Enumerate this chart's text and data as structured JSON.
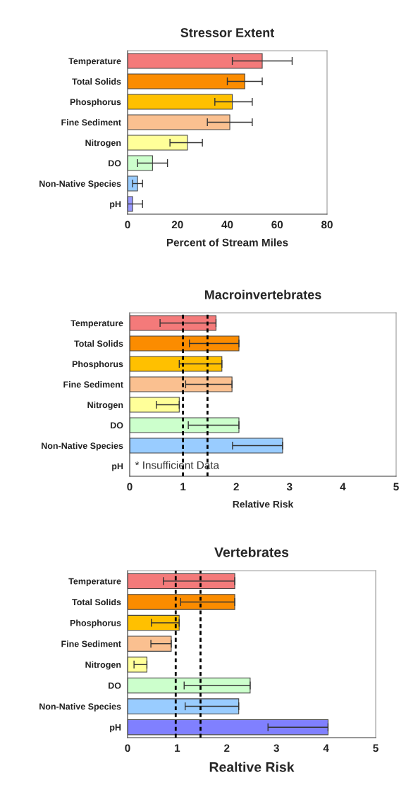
{
  "chart_data": [
    {
      "type": "bar",
      "orientation": "horizontal",
      "title": "Stressor Extent",
      "xlabel": "Percent of Stream Miles",
      "categories": [
        "Temperature",
        "Total Solids",
        "Phosphorus",
        "Fine Sediment",
        "Nitrogen",
        "DO",
        "Non-Native Species",
        "pH"
      ],
      "values": [
        54,
        47,
        42,
        41,
        24,
        10,
        4,
        2
      ],
      "errors": [
        [
          42,
          66
        ],
        [
          40,
          54
        ],
        [
          35,
          50
        ],
        [
          32,
          50
        ],
        [
          17,
          30
        ],
        [
          4,
          16
        ],
        [
          2,
          6
        ],
        [
          0,
          6
        ]
      ],
      "colors": [
        "#f47a7a",
        "#fb8c00",
        "#ffc000",
        "#fac090",
        "#ffff99",
        "#ccffcc",
        "#99ccff",
        "#9999ff"
      ],
      "xlim": [
        0,
        80
      ],
      "xticks": [
        0,
        20,
        40,
        60,
        80
      ],
      "grid": false
    },
    {
      "type": "bar",
      "orientation": "horizontal",
      "title": "Macroinvertebrates",
      "xlabel": "Relative Risk",
      "categories": [
        "Temperature",
        "Total Solids",
        "Phosphorus",
        "Fine Sediment",
        "Nitrogen",
        "DO",
        "Non-Native Species",
        "pH"
      ],
      "values": [
        1.62,
        2.05,
        1.73,
        1.92,
        0.93,
        2.05,
        2.87,
        null
      ],
      "errors": [
        [
          0.57,
          1.62
        ],
        [
          1.12,
          2.05
        ],
        [
          0.93,
          1.73
        ],
        [
          1.05,
          1.92
        ],
        [
          0.5,
          0.93
        ],
        [
          1.1,
          2.05
        ],
        [
          1.93,
          2.87
        ],
        null
      ],
      "colors": [
        "#f47a7a",
        "#fb8c00",
        "#ffc000",
        "#fac090",
        "#ffff99",
        "#ccffcc",
        "#99ccff",
        "#9999ff"
      ],
      "xlim": [
        0,
        5
      ],
      "xticks": [
        0,
        1,
        2,
        3,
        4,
        5
      ],
      "grid": false,
      "ref_lines": [
        {
          "axis": "x",
          "value": 1,
          "color": "#000000",
          "line_style": "dotted"
        },
        {
          "axis": "x",
          "value": 1.46,
          "color": "#000000",
          "line_style": "dotted"
        }
      ],
      "annotations": [
        "* Insufficient Data"
      ]
    },
    {
      "type": "bar",
      "orientation": "horizontal",
      "title": "Vertebrates",
      "xlabel": "Realtive Risk",
      "categories": [
        "Temperature",
        "Total Solids",
        "Phosphorus",
        "Fine Sediment",
        "Nitrogen",
        "DO",
        "Non-Native Species",
        "pH"
      ],
      "values": [
        2.16,
        2.16,
        1.04,
        0.88,
        0.39,
        2.47,
        2.24,
        4.04
      ],
      "errors": [
        [
          0.72,
          2.16
        ],
        [
          1.07,
          2.16
        ],
        [
          0.48,
          1.04
        ],
        [
          0.47,
          0.88
        ],
        [
          0.13,
          0.39
        ],
        [
          1.14,
          2.47
        ],
        [
          1.16,
          2.24
        ],
        [
          2.83,
          4.04
        ]
      ],
      "colors": [
        "#f47a7a",
        "#fb8c00",
        "#ffc000",
        "#fac090",
        "#ffff99",
        "#ccffcc",
        "#99ccff",
        "#8080ff"
      ],
      "xlim": [
        0,
        5
      ],
      "xticks": [
        0,
        1,
        2,
        3,
        4,
        5
      ],
      "grid": false,
      "ref_lines": [
        {
          "axis": "x",
          "value": 0.97,
          "color": "#000000",
          "line_style": "dotted"
        },
        {
          "axis": "x",
          "value": 1.47,
          "color": "#000000",
          "line_style": "dotted"
        }
      ]
    }
  ]
}
